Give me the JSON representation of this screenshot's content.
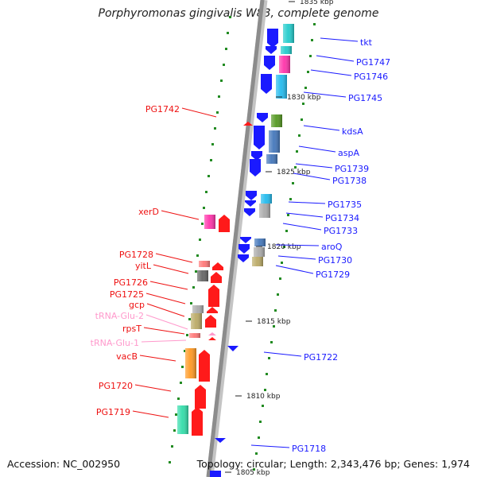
{
  "title": "Porphyromonas gingivalis W83, complete genome",
  "footer": {
    "accession": "Accession: NC_002950",
    "summary": "Topology: circular; Length: 2,343,476 bp; Genes: 1,974"
  },
  "scale_labels": [
    "1835 kbp",
    "1830 kbp",
    "1825 kbp",
    "1820 kbp",
    "1815 kbp",
    "1810 kbp",
    "1805 kbp"
  ],
  "genes_right": [
    "tkt",
    "PG1747",
    "PG1746",
    "PG1745",
    "kdsA",
    "aspA",
    "PG1739",
    "PG1738",
    "PG1735",
    "PG1734",
    "PG1733",
    "aroQ",
    "PG1730",
    "PG1729",
    "PG1722",
    "PG1718"
  ],
  "genes_left": [
    "PG1742",
    "xerD",
    "PG1728",
    "yitL",
    "PG1726",
    "PG1725",
    "gcp",
    "tRNA-Glu-2",
    "rpsT",
    "tRNA-Glu-1",
    "vacB",
    "PG1720",
    "PG1719"
  ],
  "colors": {
    "forward_strand": "#1a1aff",
    "reverse_strand": "#ff1a1a",
    "trna": "#ff99cc",
    "backbone": "#8c8c8c",
    "gc_ticks": "#228b22"
  }
}
